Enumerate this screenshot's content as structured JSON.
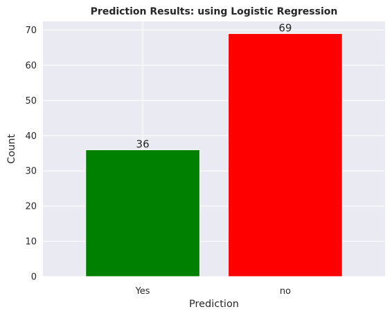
{
  "chart_data": {
    "type": "bar",
    "title": "Prediction Results: using Logistic Regression",
    "xlabel": "Prediction",
    "ylabel": "Count",
    "categories": [
      "Yes",
      "no"
    ],
    "values": [
      36,
      69
    ],
    "data_labels": [
      "36",
      "69"
    ],
    "colors": [
      "#008000",
      "#ff0000"
    ],
    "ylim": [
      0,
      72.45
    ],
    "yticks": [
      "0",
      "10",
      "20",
      "30",
      "40",
      "50",
      "60",
      "70"
    ],
    "grid": true,
    "background": "#eaeaf2",
    "legend": "none"
  }
}
